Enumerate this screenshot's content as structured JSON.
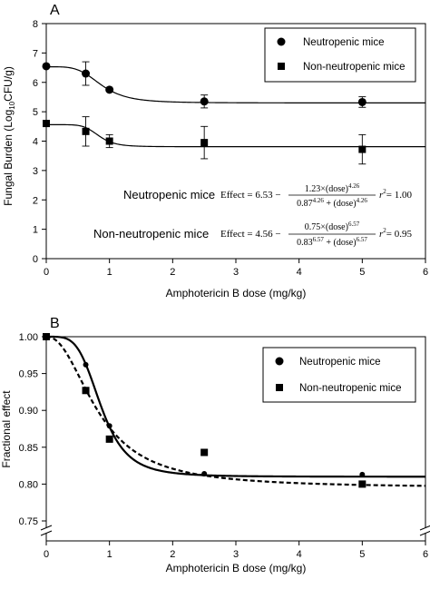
{
  "chart_data": [
    {
      "type": "scatter",
      "panel_label": "A",
      "xlabel": "Amphotericin B dose (mg/kg)",
      "ylabel": {
        "main": "Fungal Burden (Log",
        "sub": "10",
        "tail": "CFU/g)"
      },
      "xlim": [
        0,
        6
      ],
      "ylim": [
        0,
        8
      ],
      "xticks": [
        "0",
        "1",
        "2",
        "3",
        "4",
        "5",
        "6"
      ],
      "yticks": [
        "0",
        "1",
        "2",
        "3",
        "4",
        "5",
        "6",
        "7",
        "8"
      ],
      "legend": {
        "placement": "top-right",
        "entries": [
          {
            "marker": "circle",
            "label": "Neutropenic mice"
          },
          {
            "marker": "square",
            "label": "Non-neutropenic mice"
          }
        ]
      },
      "series": [
        {
          "name": "Neutropenic mice",
          "marker": "circle",
          "points": [
            {
              "x": 0,
              "y": 6.55,
              "err": 0
            },
            {
              "x": 0.625,
              "y": 6.3,
              "err": 0.4
            },
            {
              "x": 1,
              "y": 5.75,
              "err": 0
            },
            {
              "x": 2.5,
              "y": 5.35,
              "err": 0.22
            },
            {
              "x": 5,
              "y": 5.33,
              "err": 0.18
            }
          ],
          "fit": {
            "e0": 6.53,
            "emax": 1.23,
            "ec50": 0.87,
            "hill": 4.26
          }
        },
        {
          "name": "Non-neutropenic mice",
          "marker": "square",
          "points": [
            {
              "x": 0,
              "y": 4.6,
              "err": 0
            },
            {
              "x": 0.625,
              "y": 4.33,
              "err": 0.5
            },
            {
              "x": 1,
              "y": 4.0,
              "err": 0.22
            },
            {
              "x": 2.5,
              "y": 3.95,
              "err": 0.55
            },
            {
              "x": 5,
              "y": 3.72,
              "err": 0.5
            }
          ],
          "fit": {
            "e0": 4.56,
            "emax": 0.75,
            "ec50": 0.83,
            "hill": 6.57
          }
        }
      ],
      "equations": [
        {
          "label": "Neutropenic mice",
          "lhs": "Effect = 6.53 −",
          "numerator": "1.23×(dose)",
          "numerator_exp": "4.26",
          "denominator": "0.87",
          "denominator_exp": "4.26",
          "denominator_tail": " + (dose)",
          "denominator_tail_exp": "4.26",
          "r2": "= 1.00"
        },
        {
          "label": "Non-neutropenic mice",
          "lhs": "Effect = 4.56 −",
          "numerator": "0.75×(dose)",
          "numerator_exp": "6.57",
          "denominator": "0.83",
          "denominator_exp": "6.57",
          "denominator_tail": " + (dose)",
          "denominator_tail_exp": "6.57",
          "r2": "= 0.95"
        }
      ],
      "r2_symbol": "r",
      "r2_exp": "2"
    },
    {
      "type": "scatter",
      "panel_label": "B",
      "xlabel": "Amphotericin B dose (mg/kg)",
      "ylabel": "Fractional effect",
      "xlim": [
        0,
        6
      ],
      "ylim": [
        0.75,
        1.0
      ],
      "axis_break": true,
      "xticks": [
        "0",
        "1",
        "2",
        "3",
        "4",
        "5",
        "6"
      ],
      "yticks": [
        "0.75",
        "0.80",
        "0.85",
        "0.90",
        "0.95",
        "1.00"
      ],
      "legend": {
        "placement": "top-right",
        "entries": [
          {
            "marker": "circle",
            "label": "Neutropenic mice"
          },
          {
            "marker": "square",
            "label": "Non-neutropenic mice"
          }
        ]
      },
      "series": [
        {
          "name": "Neutropenic mice",
          "marker": "circle",
          "line": "solid",
          "points": [
            {
              "x": 0,
              "y": 1.0
            },
            {
              "x": 0.625,
              "y": 0.962
            },
            {
              "x": 1,
              "y": 0.879
            },
            {
              "x": 2.5,
              "y": 0.814
            },
            {
              "x": 5,
              "y": 0.813
            }
          ],
          "fit": {
            "e0": 1.0,
            "emax": 0.19,
            "ec50": 0.87,
            "hill": 4.26
          }
        },
        {
          "name": "Non-neutropenic mice",
          "marker": "square",
          "line": "dashed",
          "points": [
            {
              "x": 0,
              "y": 1.0
            },
            {
              "x": 0.625,
              "y": 0.927
            },
            {
              "x": 1,
              "y": 0.861
            },
            {
              "x": 2.5,
              "y": 0.843
            },
            {
              "x": 5,
              "y": 0.8
            }
          ],
          "fit": {
            "e0": 1.0,
            "emax": 0.205,
            "ec50": 0.83,
            "hill": 2.2
          }
        }
      ]
    }
  ]
}
